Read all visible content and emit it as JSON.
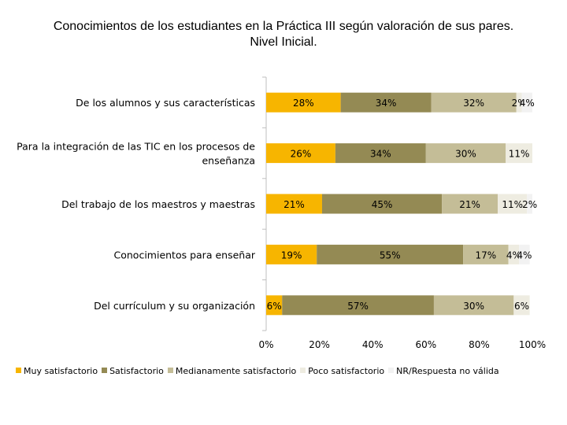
{
  "chart_data": {
    "type": "bar",
    "orientation": "horizontal",
    "stacked": "percent",
    "title": "Conocimientos de los estudiantes en la Práctica III según valoración de sus pares. Nivel Inicial.",
    "title_lines": [
      "Conocimientos de los estudiantes en la Práctica III según valoración de sus pares.",
      "Nivel Inicial."
    ],
    "categories": [
      "De los alumnos y sus características",
      "Para la integración de las TIC en los procesos de enseñanza",
      "Del trabajo de los maestros y maestras",
      "Conocimientos para enseñar",
      "Del currículum y su organización"
    ],
    "category_lines": [
      [
        "De los alumnos y sus características"
      ],
      [
        "Para la integración de las TIC en los procesos de",
        "enseñanza"
      ],
      [
        "Del trabajo de los maestros y maestras"
      ],
      [
        "Conocimientos para enseñar"
      ],
      [
        "Del currículum y su organización"
      ]
    ],
    "series": [
      {
        "name": "Muy satisfactorio",
        "color": "#F7B500",
        "values": [
          28,
          26,
          21,
          19,
          6
        ],
        "labels": [
          "28%",
          "26%",
          "21%",
          "19%",
          "6%"
        ]
      },
      {
        "name": "Satisfactorio",
        "color": "#948A54",
        "values": [
          34,
          34,
          45,
          55,
          57
        ],
        "labels": [
          "34%",
          "34%",
          "45%",
          "55%",
          "57%"
        ]
      },
      {
        "name": "Medianamente satisfactorio",
        "color": "#C4BD97",
        "values": [
          32,
          30,
          21,
          17,
          30
        ],
        "labels": [
          "32%",
          "30%",
          "21%",
          "17%",
          "30%"
        ]
      },
      {
        "name": "Poco satisfactorio",
        "color": "#EEECE1",
        "values": [
          2,
          11,
          11,
          4,
          6
        ],
        "labels": [
          "2%",
          "11%",
          "11%",
          "4%",
          "6%"
        ]
      },
      {
        "name": "NR/Respuesta no válida",
        "color": "#F2F2F2",
        "values": [
          4,
          0,
          2,
          4,
          0
        ],
        "labels": [
          "4%",
          "",
          "2%",
          "4%",
          ""
        ]
      }
    ],
    "xlim": [
      0,
      100
    ],
    "xticks": [
      "0%",
      "20%",
      "40%",
      "60%",
      "80%",
      "100%"
    ],
    "legend_position": "bottom"
  }
}
